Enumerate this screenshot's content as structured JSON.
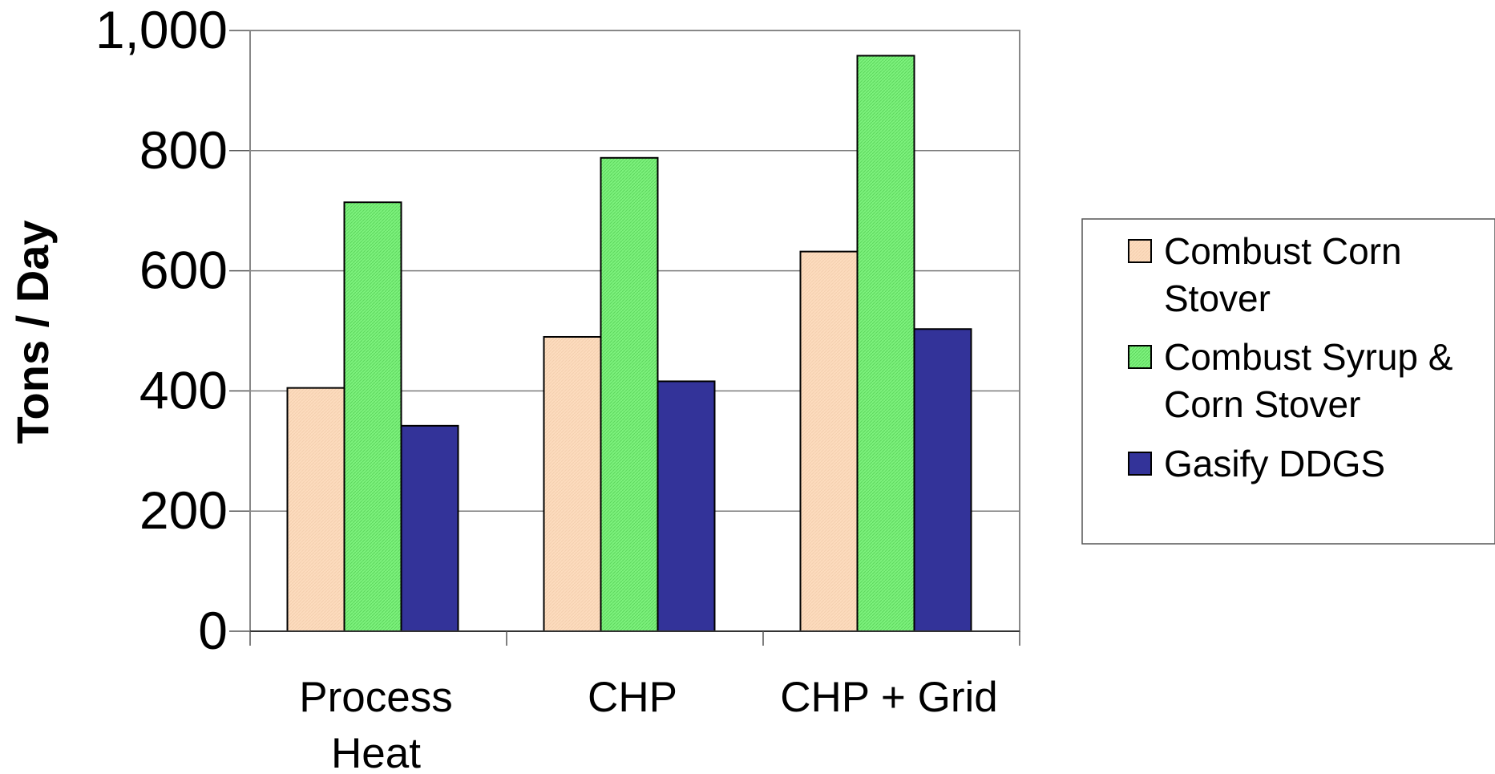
{
  "chart_data": {
    "type": "bar",
    "ylabel": "Tons / Day",
    "ylim": [
      0,
      1000
    ],
    "yticks": [
      0,
      200,
      400,
      600,
      800,
      1000
    ],
    "ytick_labels": [
      "0",
      "200",
      "400",
      "600",
      "800",
      "1,000"
    ],
    "grid": true,
    "legend_position": "right",
    "categories": [
      [
        "Process",
        "Heat"
      ],
      [
        "CHP"
      ],
      [
        "CHP + Grid"
      ]
    ],
    "series": [
      {
        "name_lines": [
          "Combust Corn",
          "Stover"
        ],
        "color": "#FDDCBE",
        "values": [
          405,
          490,
          632
        ]
      },
      {
        "name_lines": [
          "Combust Syrup &",
          "Corn Stover"
        ],
        "color": "#7DF27D",
        "values": [
          714,
          788,
          958
        ]
      },
      {
        "name_lines": [
          "Gasify DDGS"
        ],
        "color": "#333399",
        "values": [
          342,
          416,
          503
        ]
      }
    ]
  }
}
